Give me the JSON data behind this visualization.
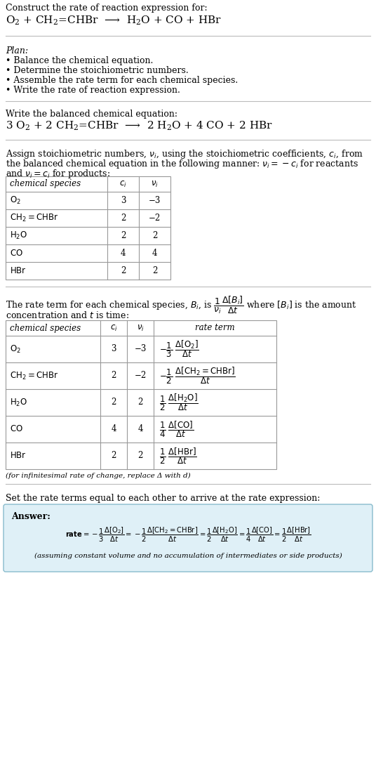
{
  "bg_color": "#ffffff",
  "text_color": "#000000",
  "separator_color": "#bbbbbb",
  "title_line1": "Construct the rate of reaction expression for:",
  "plan_title": "Plan:",
  "plan_bullets": [
    "• Balance the chemical equation.",
    "• Determine the stoichiometric numbers.",
    "• Assemble the rate term for each chemical species.",
    "• Write the rate of reaction expression."
  ],
  "balanced_label": "Write the balanced chemical equation:",
  "table1_headers": [
    "chemical species",
    "c_i",
    "nu_i"
  ],
  "table1_rows": [
    [
      "O_2",
      "3",
      "−3"
    ],
    [
      "CH_2=CHBr",
      "2",
      "−2"
    ],
    [
      "H_2O",
      "2",
      "2"
    ],
    [
      "CO",
      "4",
      "4"
    ],
    [
      "HBr",
      "2",
      "2"
    ]
  ],
  "table2_headers": [
    "chemical species",
    "c_i",
    "nu_i",
    "rate term"
  ],
  "table2_rows": [
    [
      "O_2",
      "3",
      "−3"
    ],
    [
      "CH_2=CHBr",
      "2",
      "−2"
    ],
    [
      "H_2O",
      "2",
      "2"
    ],
    [
      "CO",
      "4",
      "4"
    ],
    [
      "HBr",
      "2",
      "2"
    ]
  ],
  "infinitesimal_note": "(for infinitesimal rate of change, replace Δ with d)",
  "set_equal_text": "Set the rate terms equal to each other to arrive at the rate expression:",
  "answer_bg": "#dff0f7",
  "answer_border": "#88bbcc",
  "answer_label": "Answer:",
  "answer_note": "(assuming constant volume and no accumulation of intermediates or side products)",
  "lm": 8,
  "rm": 528,
  "fs_title": 9.0,
  "fs_body": 9.0,
  "fs_eq": 11.0,
  "fs_small": 8.5,
  "fs_tiny": 7.5
}
